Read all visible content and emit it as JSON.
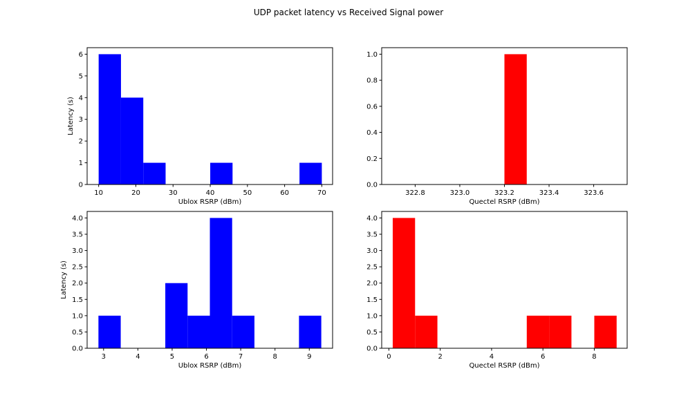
{
  "figure": {
    "title": "UDP packet latency vs Received Signal power"
  },
  "colors": {
    "ublox": "#0000ff",
    "quectel": "#ff0000",
    "axes": "#000000",
    "background": "#ffffff"
  },
  "chart_data": [
    {
      "type": "bar",
      "subtype": "histogram",
      "position": "top-left",
      "xlabel": "Ublox RSRP (dBm)",
      "ylabel": "Latency (s)",
      "xlim": [
        6.9,
        72.9
      ],
      "ylim": [
        0,
        6.3
      ],
      "xticks": [
        10,
        20,
        30,
        40,
        50,
        60,
        70
      ],
      "yticks": [
        0,
        1,
        2,
        3,
        4,
        5,
        6
      ],
      "ytick_labels": [
        "0",
        "1",
        "2",
        "3",
        "4",
        "5",
        "6"
      ],
      "grid": false,
      "bars": [
        {
          "x0": 10.0,
          "x1": 16.0,
          "value": 6
        },
        {
          "x0": 16.0,
          "x1": 22.0,
          "value": 4
        },
        {
          "x0": 22.0,
          "x1": 28.0,
          "value": 1
        },
        {
          "x0": 40.0,
          "x1": 46.0,
          "value": 1
        },
        {
          "x0": 64.0,
          "x1": 70.0,
          "value": 1
        }
      ]
    },
    {
      "type": "bar",
      "subtype": "histogram",
      "position": "top-right",
      "xlabel": "Quectel RSRP (dBm)",
      "ylabel": "",
      "xlim": [
        322.65,
        323.75
      ],
      "ylim": [
        0,
        1.05
      ],
      "xticks": [
        322.8,
        323.0,
        323.2,
        323.4,
        323.6
      ],
      "yticks": [
        0,
        0.2,
        0.4,
        0.6,
        0.8,
        1.0
      ],
      "ytick_labels": [
        "0.0",
        "0.2",
        "0.4",
        "0.6",
        "0.8",
        "1.0"
      ],
      "grid": false,
      "bars": [
        {
          "x0": 323.2,
          "x1": 323.3,
          "value": 1
        }
      ]
    },
    {
      "type": "bar",
      "subtype": "histogram",
      "position": "bottom-left",
      "xlabel": "Ublox RSRP (dBm)",
      "ylabel": "Latency (s)",
      "xlim": [
        2.52,
        9.68
      ],
      "ylim": [
        0,
        4.2
      ],
      "xticks": [
        3,
        4,
        5,
        6,
        7,
        8,
        9
      ],
      "yticks": [
        0,
        0.5,
        1.0,
        1.5,
        2.0,
        2.5,
        3.0,
        3.5,
        4.0
      ],
      "ytick_labels": [
        "0.0",
        "0.5",
        "1.0",
        "1.5",
        "2.0",
        "2.5",
        "3.0",
        "3.5",
        "4.0"
      ],
      "grid": false,
      "bars": [
        {
          "x0": 2.85,
          "x1": 3.5,
          "value": 1
        },
        {
          "x0": 4.8,
          "x1": 5.45,
          "value": 2
        },
        {
          "x0": 5.45,
          "x1": 6.1,
          "value": 1
        },
        {
          "x0": 6.1,
          "x1": 6.75,
          "value": 4
        },
        {
          "x0": 6.75,
          "x1": 7.4,
          "value": 1
        },
        {
          "x0": 8.7,
          "x1": 9.35,
          "value": 1
        }
      ]
    },
    {
      "type": "bar",
      "subtype": "histogram",
      "position": "bottom-right",
      "xlabel": "Quectel RSRP (dBm)",
      "ylabel": "",
      "xlim": [
        -0.28,
        9.28
      ],
      "ylim": [
        0,
        4.2
      ],
      "xticks": [
        0,
        2,
        4,
        6,
        8
      ],
      "yticks": [
        0,
        0.5,
        1.0,
        1.5,
        2.0,
        2.5,
        3.0,
        3.5,
        4.0
      ],
      "ytick_labels": [
        "0.0",
        "0.5",
        "1.0",
        "1.5",
        "2.0",
        "2.5",
        "3.0",
        "3.5",
        "4.0"
      ],
      "grid": false,
      "bars": [
        {
          "x0": 0.15,
          "x1": 1.02,
          "value": 4
        },
        {
          "x0": 1.02,
          "x1": 1.89,
          "value": 1
        },
        {
          "x0": 5.37,
          "x1": 6.24,
          "value": 1
        },
        {
          "x0": 6.24,
          "x1": 7.11,
          "value": 1
        },
        {
          "x0": 8.0,
          "x1": 8.87,
          "value": 1
        }
      ]
    }
  ]
}
